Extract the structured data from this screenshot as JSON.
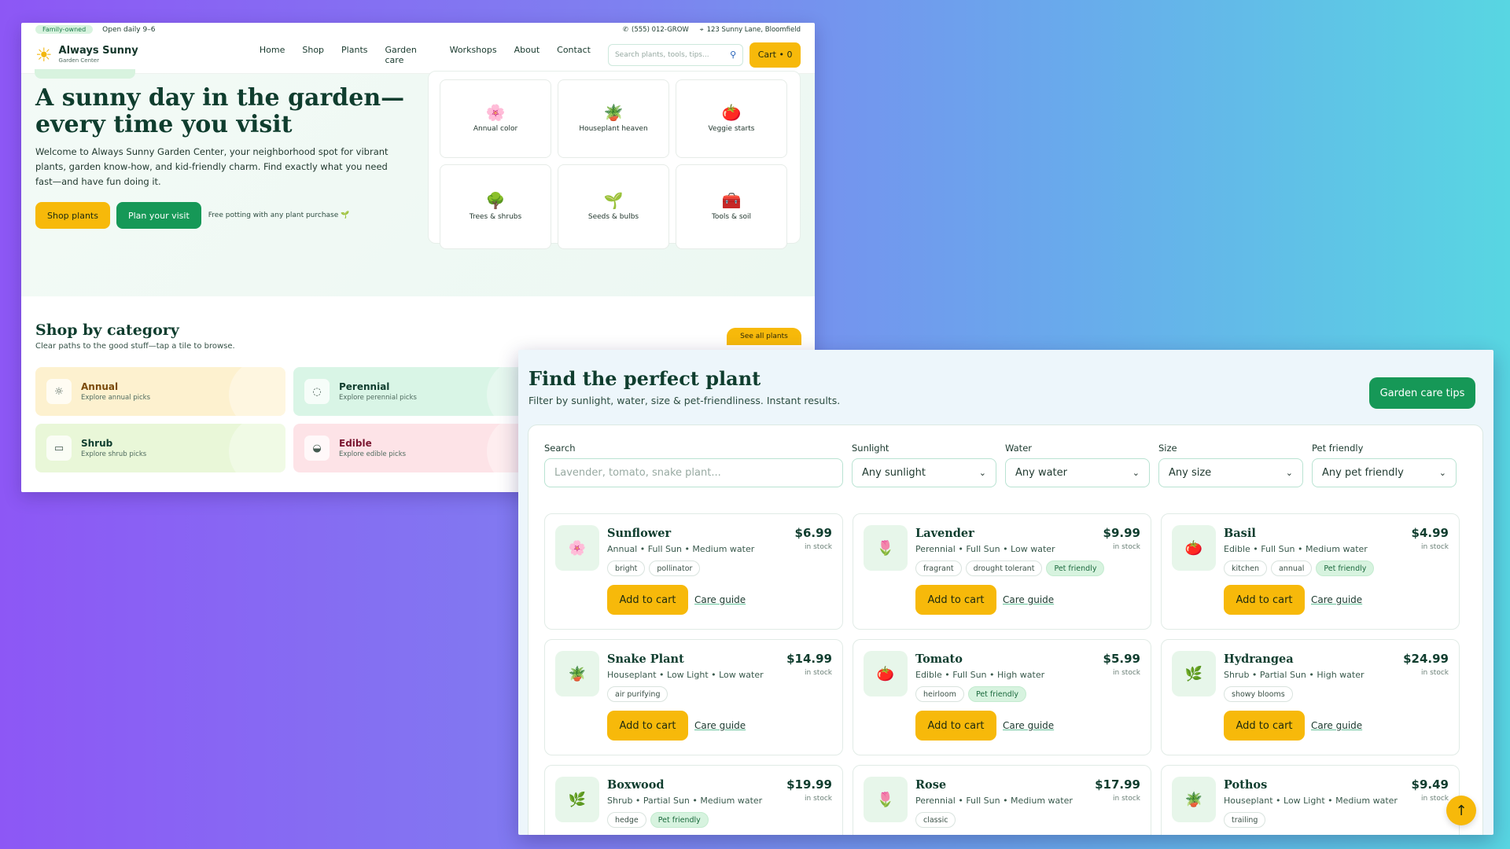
{
  "back": {
    "topbar": {
      "badge": "Family-owned",
      "hours": "Open daily 9–6",
      "phone": "(555) 012-GROW",
      "address": "123 Sunny Lane, Bloomfield"
    },
    "brand": {
      "title": "Always Sunny",
      "subtitle": "Garden Center"
    },
    "nav": [
      "Home",
      "Shop",
      "Plants",
      "Garden care",
      "Workshops",
      "About",
      "Contact"
    ],
    "search_placeholder": "Search plants, tools, tips...",
    "cart_label": "Cart • 0",
    "hero": {
      "title": "A sunny day in the garden—every time you visit",
      "body": "Welcome to Always Sunny Garden Center, your neighborhood spot for vibrant plants, garden know-how, and kid-friendly charm. Find exactly what you need fast—and have fun doing it.",
      "btn_shop": "Shop plants",
      "btn_visit": "Plan your visit",
      "note": "Free potting with any plant purchase 🌱"
    },
    "tiles": [
      {
        "label": "Annual color",
        "icon": "🌸"
      },
      {
        "label": "Houseplant heaven",
        "icon": "🪴"
      },
      {
        "label": "Veggie starts",
        "icon": "🍅"
      },
      {
        "label": "Trees & shrubs",
        "icon": "🌳"
      },
      {
        "label": "Seeds & bulbs",
        "icon": "🌱"
      },
      {
        "label": "Tools & soil",
        "icon": "🧰"
      }
    ],
    "shop_by_category": {
      "title": "Shop by category",
      "subtitle": "Clear paths to the good stuff—tap a tile to browse.",
      "see_all": "See all plants",
      "cards": [
        {
          "title": "Annual",
          "sub": "Explore annual picks",
          "icon": "☼",
          "bg": "#fdf1cf",
          "color": "#7a4a0a"
        },
        {
          "title": "Perennial",
          "sub": "Explore perennial picks",
          "icon": "◌",
          "bg": "#d9f5e6",
          "color": "#0f3d2e"
        },
        {
          "title": "Shrub",
          "sub": "Explore shrub picks",
          "icon": "▭",
          "bg": "#e9f7d8",
          "color": "#0f3d2e"
        },
        {
          "title": "Edible",
          "sub": "Explore edible picks",
          "icon": "◒",
          "bg": "#fde3e7",
          "color": "#7a1530"
        }
      ]
    }
  },
  "front": {
    "title": "Find the perfect plant",
    "subtitle": "Filter by sunlight, water, size & pet-friendliness. Instant results.",
    "care_tips": "Garden care tips",
    "filters": {
      "search_label": "Search",
      "search_placeholder": "Lavender, tomato, snake plant...",
      "sunlight_label": "Sunlight",
      "sunlight_value": "Any sunlight",
      "water_label": "Water",
      "water_value": "Any water",
      "size_label": "Size",
      "size_value": "Any size",
      "pet_label": "Pet friendly",
      "pet_value": "Any pet friendly"
    },
    "add_label": "Add to cart",
    "care_label": "Care guide",
    "stock_label": "in stock",
    "products": [
      {
        "name": "Sunflower",
        "meta": "Annual • Full Sun • Medium water",
        "price": "$6.99",
        "icon": "🌸",
        "tags": [
          {
            "t": "bright",
            "pet": false
          },
          {
            "t": "pollinator",
            "pet": false
          }
        ]
      },
      {
        "name": "Lavender",
        "meta": "Perennial • Full Sun • Low water",
        "price": "$9.99",
        "icon": "🌷",
        "tags": [
          {
            "t": "fragrant",
            "pet": false
          },
          {
            "t": "drought tolerant",
            "pet": false
          },
          {
            "t": "Pet friendly",
            "pet": true
          }
        ]
      },
      {
        "name": "Basil",
        "meta": "Edible • Full Sun • Medium water",
        "price": "$4.99",
        "icon": "🍅",
        "tags": [
          {
            "t": "kitchen",
            "pet": false
          },
          {
            "t": "annual",
            "pet": false
          },
          {
            "t": "Pet friendly",
            "pet": true
          }
        ]
      },
      {
        "name": "Snake Plant",
        "meta": "Houseplant • Low Light • Low water",
        "price": "$14.99",
        "icon": "🪴",
        "tags": [
          {
            "t": "air purifying",
            "pet": false
          }
        ]
      },
      {
        "name": "Tomato",
        "meta": "Edible • Full Sun • High water",
        "price": "$5.99",
        "icon": "🍅",
        "tags": [
          {
            "t": "heirloom",
            "pet": false
          },
          {
            "t": "Pet friendly",
            "pet": true
          }
        ]
      },
      {
        "name": "Hydrangea",
        "meta": "Shrub • Partial Sun • High water",
        "price": "$24.99",
        "icon": "🌿",
        "tags": [
          {
            "t": "showy blooms",
            "pet": false
          }
        ]
      },
      {
        "name": "Boxwood",
        "meta": "Shrub • Partial Sun • Medium water",
        "price": "$19.99",
        "icon": "🌿",
        "tags": [
          {
            "t": "hedge",
            "pet": false
          },
          {
            "t": "Pet friendly",
            "pet": true
          }
        ]
      },
      {
        "name": "Rose",
        "meta": "Perennial • Full Sun • Medium water",
        "price": "$17.99",
        "icon": "🌷",
        "tags": [
          {
            "t": "classic",
            "pet": false
          }
        ]
      },
      {
        "name": "Pothos",
        "meta": "Houseplant • Low Light • Medium water",
        "price": "$9.49",
        "icon": "🪴",
        "tags": [
          {
            "t": "trailing",
            "pet": false
          }
        ]
      }
    ],
    "scroll_top_icon": "↑"
  }
}
